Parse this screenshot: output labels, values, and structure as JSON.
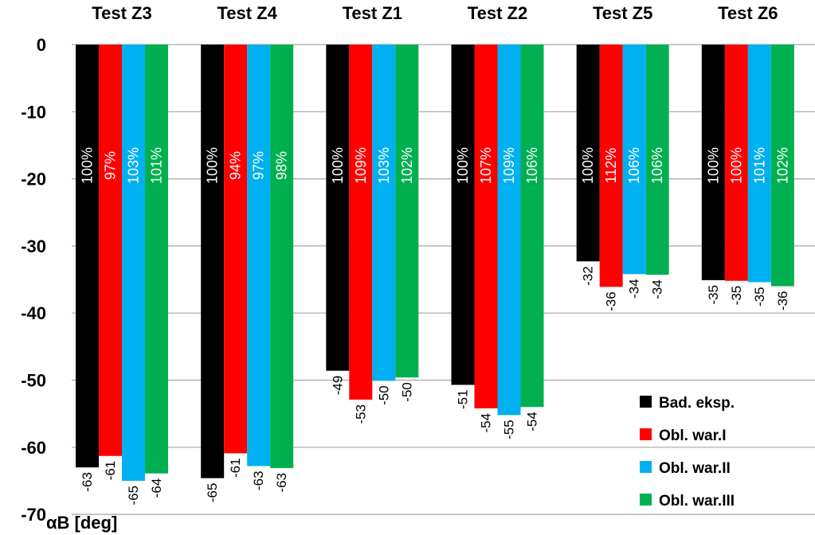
{
  "chart_data": {
    "type": "bar",
    "orientation": "vertical",
    "ylabel": "αB [deg]",
    "ylim": [
      -70,
      0
    ],
    "yticks": [
      0,
      -10,
      -20,
      -30,
      -40,
      -50,
      -60,
      -70
    ],
    "grid": "horizontal",
    "legend_position": "bottom-right",
    "categories": [
      "Test Z3",
      "Test Z4",
      "Test Z1",
      "Test Z2",
      "Test Z5",
      "Test Z6"
    ],
    "series": [
      {
        "name": "Bad. eksp.",
        "color": "#000000",
        "label_color": "#ffffff",
        "values": [
          -63,
          -64.6,
          -48.6,
          -50.7,
          -32.3,
          -35.1
        ],
        "value_labels": [
          "-63",
          "-65",
          "-49",
          "-51",
          "-32",
          "-35"
        ],
        "percent_labels": [
          "100%",
          "100%",
          "100%",
          "100%",
          "100%",
          "100%"
        ]
      },
      {
        "name": "Obl. war.I",
        "color": "#ff0000",
        "label_color": "#ffffff",
        "values": [
          -61.3,
          -60.9,
          -52.9,
          -54.2,
          -36.1,
          -35.2
        ],
        "value_labels": [
          "-61",
          "-61",
          "-53",
          "-54",
          "-36",
          "-35"
        ],
        "percent_labels": [
          "97%",
          "94%",
          "109%",
          "107%",
          "112%",
          "100%"
        ]
      },
      {
        "name": "Obl. war.II",
        "color": "#00b0f0",
        "label_color": "#ffffff",
        "values": [
          -65,
          -62.8,
          -50.1,
          -55.2,
          -34.2,
          -35.4
        ],
        "value_labels": [
          "-65",
          "-63",
          "-50",
          "-55",
          "-34",
          "-35"
        ],
        "percent_labels": [
          "103%",
          "97%",
          "103%",
          "109%",
          "106%",
          "101%"
        ]
      },
      {
        "name": "Obl. war.III",
        "color": "#00b050",
        "label_color": "#ffffff",
        "values": [
          -63.9,
          -63.1,
          -49.6,
          -54,
          -34.3,
          -36
        ],
        "value_labels": [
          "-64",
          "-63",
          "-50",
          "-54",
          "-34",
          "-36"
        ],
        "percent_labels": [
          "101%",
          "98%",
          "102%",
          "106%",
          "106%",
          "102%"
        ]
      }
    ]
  }
}
